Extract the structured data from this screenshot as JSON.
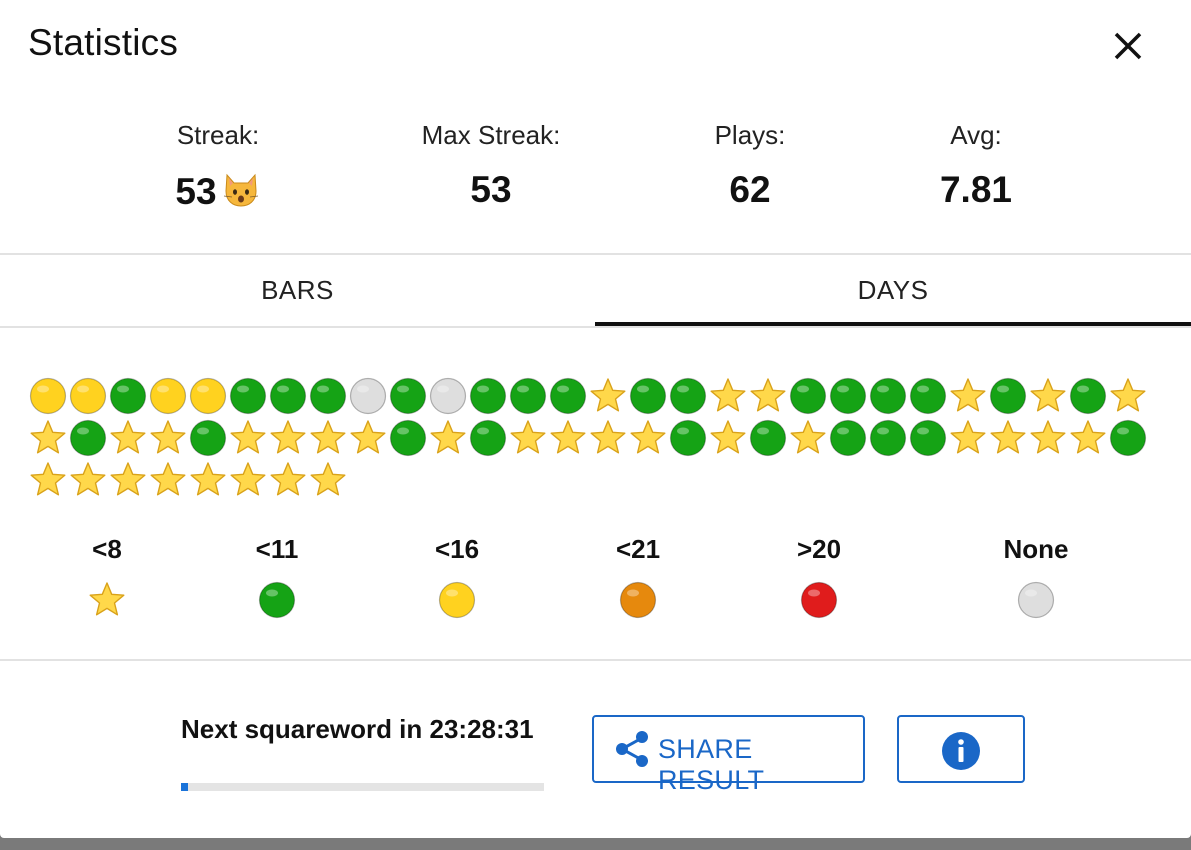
{
  "dialog": {
    "title": "Statistics"
  },
  "stats": [
    {
      "label": "Streak:",
      "value": "53"
    },
    {
      "label": "Max Streak:",
      "value": "53"
    },
    {
      "label": "Plays:",
      "value": "62"
    },
    {
      "label": "Avg:",
      "value": "7.81"
    }
  ],
  "streak_icon": "cat-face-icon",
  "tabs": [
    {
      "label": "BARS",
      "selected": false
    },
    {
      "label": "DAYS",
      "selected": true
    }
  ],
  "days": {
    "rows": [
      [
        "yellow",
        "yellow",
        "green",
        "yellow",
        "yellow",
        "green",
        "green",
        "green",
        "none",
        "green",
        "none",
        "green",
        "green",
        "green",
        "star",
        "green",
        "green",
        "star",
        "star",
        "green",
        "green",
        "green",
        "green",
        "star",
        "green",
        "star",
        "green",
        "star"
      ],
      [
        "star",
        "green",
        "star",
        "star",
        "green",
        "star",
        "star",
        "star",
        "star",
        "green",
        "star",
        "green",
        "star",
        "star",
        "star",
        "star",
        "green",
        "star",
        "green",
        "star",
        "green",
        "green",
        "green",
        "star",
        "star",
        "star",
        "star",
        "green"
      ],
      [
        "star",
        "star",
        "star",
        "star",
        "star",
        "star",
        "star",
        "star"
      ]
    ]
  },
  "legend": [
    {
      "label": "<8",
      "mark": "star"
    },
    {
      "label": "<11",
      "mark": "green"
    },
    {
      "label": "<16",
      "mark": "yellow"
    },
    {
      "label": "<21",
      "mark": "orange"
    },
    {
      "label": ">20",
      "mark": "red"
    },
    {
      "label": "None",
      "mark": "none"
    }
  ],
  "colors": {
    "green": "#15a315",
    "yellow": "#ffd21f",
    "orange": "#e6890d",
    "red": "#e01c1c",
    "none": "#dedede",
    "star": "#ffd84a",
    "accent": "#1a67c7"
  },
  "footer": {
    "countdown": "Next squareword in 23:28:31",
    "progress_fraction": 0.02,
    "share_label": "SHARE RESULT",
    "share_icon": "share-icon",
    "info_icon": "info-icon"
  }
}
